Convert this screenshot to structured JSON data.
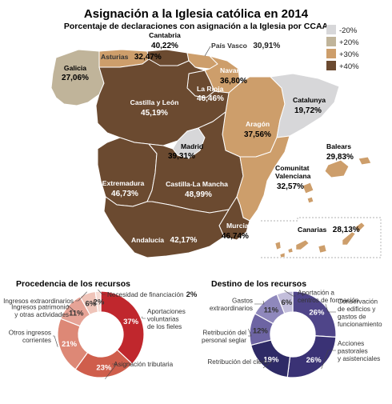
{
  "title": "Asignación a la Iglesia católica en 2014",
  "subtitle": "Porcentaje de declaraciones con asignación a la Iglesia por CCAA",
  "colors": {
    "lt20": "#d7d7d9",
    "p20": "#c0b49a",
    "p30": "#cd9e6b",
    "p40": "#6b4a30"
  },
  "legend": [
    {
      "label": "-20%",
      "color_key": "lt20"
    },
    {
      "label": "+20%",
      "color_key": "p20"
    },
    {
      "label": "+30%",
      "color_key": "p30"
    },
    {
      "label": "+40%",
      "color_key": "p40"
    }
  ],
  "regions": {
    "galicia": {
      "name": "Galicia",
      "value": "27,06%"
    },
    "asturias": {
      "name": "Asturias",
      "value": "32,47%"
    },
    "cantabria": {
      "name": "Cantabria",
      "value": "40,22%"
    },
    "pais_vasco": {
      "name": "País Vasco",
      "value": "30,91%"
    },
    "navarra": {
      "name": "Navarra",
      "value": "36,80%"
    },
    "la_rioja": {
      "name": "La Rioja",
      "value": "46,46%"
    },
    "aragon": {
      "name": "Aragón",
      "value": "37,56%"
    },
    "cataluna": {
      "name": "Catalunya",
      "value": "19,72%"
    },
    "castilla_leon": {
      "name": "Castilla y León",
      "value": "45,19%"
    },
    "madrid": {
      "name": "Madrid",
      "value": "39,31%"
    },
    "extremadura": {
      "name": "Extremadura",
      "value": "46,73%"
    },
    "castilla_mancha": {
      "name": "Castilla-La Mancha",
      "value": "48,99%"
    },
    "valencia": {
      "name": "Comunitat Valenciana",
      "name_1": "Comunitat",
      "name_2": "Valenciana",
      "value": "32,57%"
    },
    "baleares": {
      "name": "Balears",
      "value": "29,83%"
    },
    "murcia": {
      "name": "Murcia",
      "value": "46,74%"
    },
    "andalucia": {
      "name": "Andalucía",
      "value": "42,17%"
    },
    "canarias": {
      "name": "Canarias",
      "value": "28,13%"
    }
  },
  "procedencia": {
    "title": "Procedencia de los recursos",
    "slices": [
      {
        "label": "Aportaciones voluntarias de los fieles",
        "label_lines": [
          "Aportaciones",
          "voluntarias",
          "de los fieles"
        ],
        "value": 37,
        "pct": "37%",
        "color": "#c0272d"
      },
      {
        "label": "Asignación tributaria",
        "label_lines": [
          "Asignación tributaria"
        ],
        "value": 23,
        "pct": "23%",
        "color": "#cf5e4c"
      },
      {
        "label": "Otros ingresos corrientes",
        "label_lines": [
          "Otros ingresos",
          "corrientes"
        ],
        "value": 21,
        "pct": "21%",
        "color": "#dd8876"
      },
      {
        "label": "Ingresos patrimonio y otras actividades",
        "label_lines": [
          "Ingresos patrimonio",
          "y otras actividades"
        ],
        "value": 11,
        "pct": "11%",
        "color": "#e6a396"
      },
      {
        "label": "Ingresos extraordinarios",
        "label_lines": [
          "Ingresos extraordinarios"
        ],
        "value": 6,
        "pct": "6%",
        "color": "#efc4b9"
      },
      {
        "label": "Necesidad de financiación",
        "label_lines": [
          "Necesidad de financiación"
        ],
        "value": 2,
        "pct": "2%",
        "color": "#f6dcd5"
      }
    ]
  },
  "destino": {
    "title": "Destino de los recursos",
    "slices": [
      {
        "label": "Conservación de edificios y gastos de funcionamiento",
        "label_lines": [
          "Conservación",
          "de edificios y",
          "gastos de",
          "funcionamiento"
        ],
        "value": 26,
        "pct": "26%",
        "color": "#4f4589"
      },
      {
        "label": "Acciones pastorales y asistenciales",
        "label_lines": [
          "Acciones",
          "pastorales",
          "y asistenciales"
        ],
        "value": 26,
        "pct": "26%",
        "color": "#3a3275"
      },
      {
        "label": "Retribución del clero",
        "label_lines": [
          "Retribución del clero"
        ],
        "value": 19,
        "pct": "19%",
        "color": "#2e2a66"
      },
      {
        "label": "Retribución del personal seglar",
        "label_lines": [
          "Retribución del",
          "personal seglar"
        ],
        "value": 12,
        "pct": "12%",
        "color": "#6d64a3"
      },
      {
        "label": "Gastos extraordinarios",
        "label_lines": [
          "Gastos",
          "extraordinarios"
        ],
        "value": 11,
        "pct": "11%",
        "color": "#8f88bc"
      },
      {
        "label": "Aportación a centros de formación",
        "label_lines": [
          "Aportación a",
          "centros de formación"
        ],
        "value": 6,
        "pct": "6%",
        "color": "#c3bedb"
      }
    ]
  }
}
